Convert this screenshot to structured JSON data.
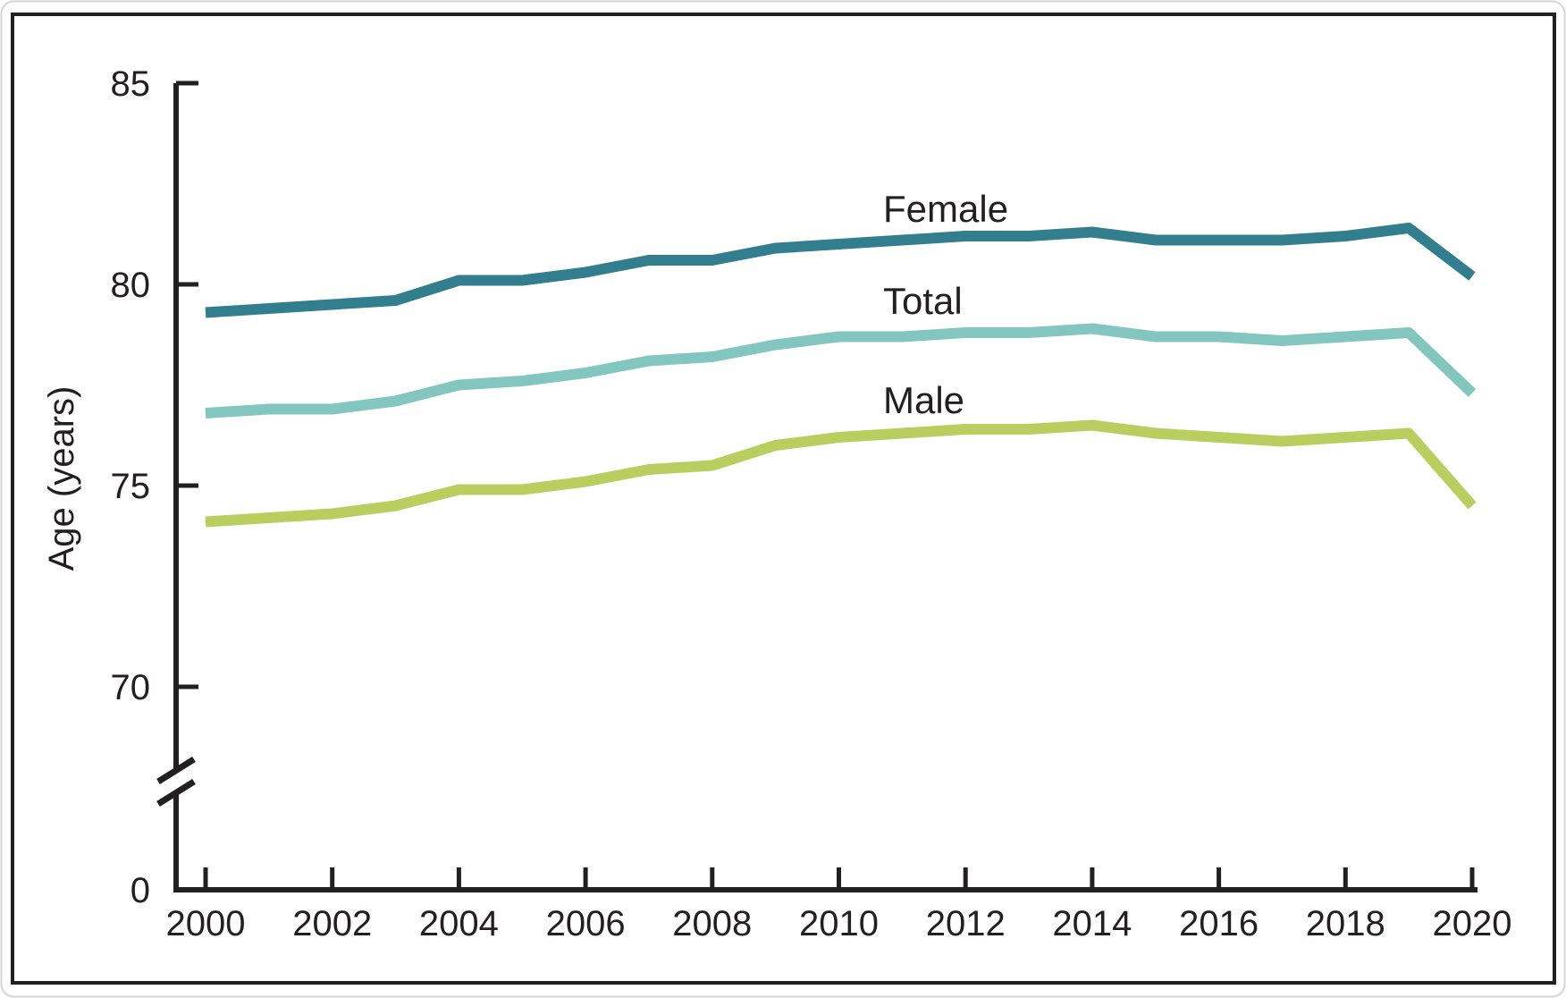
{
  "figure": {
    "ylabel": "Age (years)",
    "background_color": "#ffffff",
    "card_border_color": "#d5d5d5",
    "frame_color": "#231f20",
    "text_color": "#231f20",
    "y_axis_break": true
  },
  "chart_data": {
    "type": "line",
    "title": "",
    "xlabel": "",
    "ylabel": "Age (years)",
    "legend_position": "inline-labels-above-lines",
    "grid": false,
    "y_display_range_upper": [
      70,
      85
    ],
    "y_baseline_label": "0",
    "x": [
      2000,
      2001,
      2002,
      2003,
      2004,
      2005,
      2006,
      2007,
      2008,
      2009,
      2010,
      2011,
      2012,
      2013,
      2014,
      2015,
      2016,
      2017,
      2018,
      2019,
      2020
    ],
    "series": [
      {
        "name": "Female",
        "color": "#337e8e",
        "values": [
          79.3,
          79.4,
          79.5,
          79.6,
          80.1,
          80.1,
          80.3,
          80.6,
          80.6,
          80.9,
          81.0,
          81.1,
          81.2,
          81.2,
          81.3,
          81.1,
          81.1,
          81.1,
          81.2,
          81.4,
          80.2
        ]
      },
      {
        "name": "Total",
        "color": "#83c6c0",
        "values": [
          76.8,
          76.9,
          76.9,
          77.1,
          77.5,
          77.6,
          77.8,
          78.1,
          78.2,
          78.5,
          78.7,
          78.7,
          78.8,
          78.8,
          78.9,
          78.7,
          78.7,
          78.6,
          78.7,
          78.8,
          77.3
        ]
      },
      {
        "name": "Male",
        "color": "#b9ce5e",
        "values": [
          74.1,
          74.2,
          74.3,
          74.5,
          74.9,
          74.9,
          75.1,
          75.4,
          75.5,
          76.0,
          76.2,
          76.3,
          76.4,
          76.4,
          76.5,
          76.3,
          76.2,
          76.1,
          76.2,
          76.3,
          74.5
        ]
      }
    ],
    "x_ticks": [
      {
        "year": 2000,
        "label": "2000"
      },
      {
        "year": 2002,
        "label": "2002"
      },
      {
        "year": 2004,
        "label": "2004"
      },
      {
        "year": 2006,
        "label": "2006"
      },
      {
        "year": 2008,
        "label": "2008"
      },
      {
        "year": 2010,
        "label": "2010"
      },
      {
        "year": 2012,
        "label": "2012"
      },
      {
        "year": 2014,
        "label": "2014"
      },
      {
        "year": 2016,
        "label": "2016"
      },
      {
        "year": 2018,
        "label": "2018"
      },
      {
        "year": 2020,
        "label": "2020"
      }
    ],
    "y_ticks": [
      {
        "value": 85,
        "label": "85"
      },
      {
        "value": 80,
        "label": "80"
      },
      {
        "value": 75,
        "label": "75"
      },
      {
        "value": 70,
        "label": "70"
      },
      {
        "value": 0,
        "label": "0"
      }
    ]
  }
}
